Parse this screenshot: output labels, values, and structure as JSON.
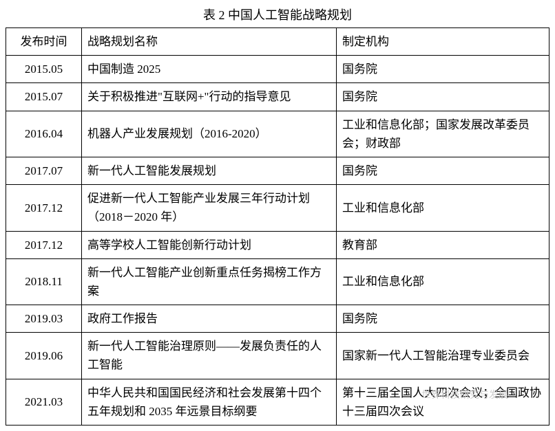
{
  "title": "表 2  中国人工智能战略规划",
  "columns": [
    "发布时间",
    "战略规划名称",
    "制定机构"
  ],
  "rows": [
    {
      "date": "2015.05",
      "plan": "中国制造 2025",
      "org": "国务院"
    },
    {
      "date": "2015.07",
      "plan": "关于积极推进\"互联网+\"行动的指导意见",
      "org": "国务院"
    },
    {
      "date": "2016.04",
      "plan": "机器人产业发展规划（2016-2020）",
      "org": "工业和信息化部；国家发展改革委员会；财政部"
    },
    {
      "date": "2017.07",
      "plan": "新一代人工智能发展规划",
      "org": "国务院"
    },
    {
      "date": "2017.12",
      "plan": "促进新一代人工智能产业发展三年行动计划 （2018－2020 年）",
      "org": "工业和信息化部"
    },
    {
      "date": "2017.12",
      "plan": "高等学校人工智能创新行动计划",
      "org": "教育部"
    },
    {
      "date": "2018.11",
      "plan": "新一代人工智能产业创新重点任务揭榜工作方案",
      "org": "工业和信息化部"
    },
    {
      "date": "2019.03",
      "plan": "政府工作报告",
      "org": "国务院"
    },
    {
      "date": "2019.06",
      "plan": "新一代人工智能治理原则——发展负责任的人工智能",
      "org": "国家新一代人工智能治理专业委员会"
    },
    {
      "date": "2021.03",
      "plan": "中华人民共和国国民经济和社会发展第十四个五年规划和 2035 年远景目标纲要",
      "org": "第十三届全国人大四次会议；全国政协十三届四次会议"
    }
  ],
  "watermark": "世界科技研究与发展",
  "style": {
    "font_family": "SimSun",
    "title_fontsize": 18,
    "cell_fontsize": 17,
    "border_color": "#000000",
    "background_color": "#ffffff",
    "text_color": "#000000",
    "watermark_color": "#d0d0d0",
    "col_widths": {
      "date": 110,
      "plan": 370
    }
  }
}
